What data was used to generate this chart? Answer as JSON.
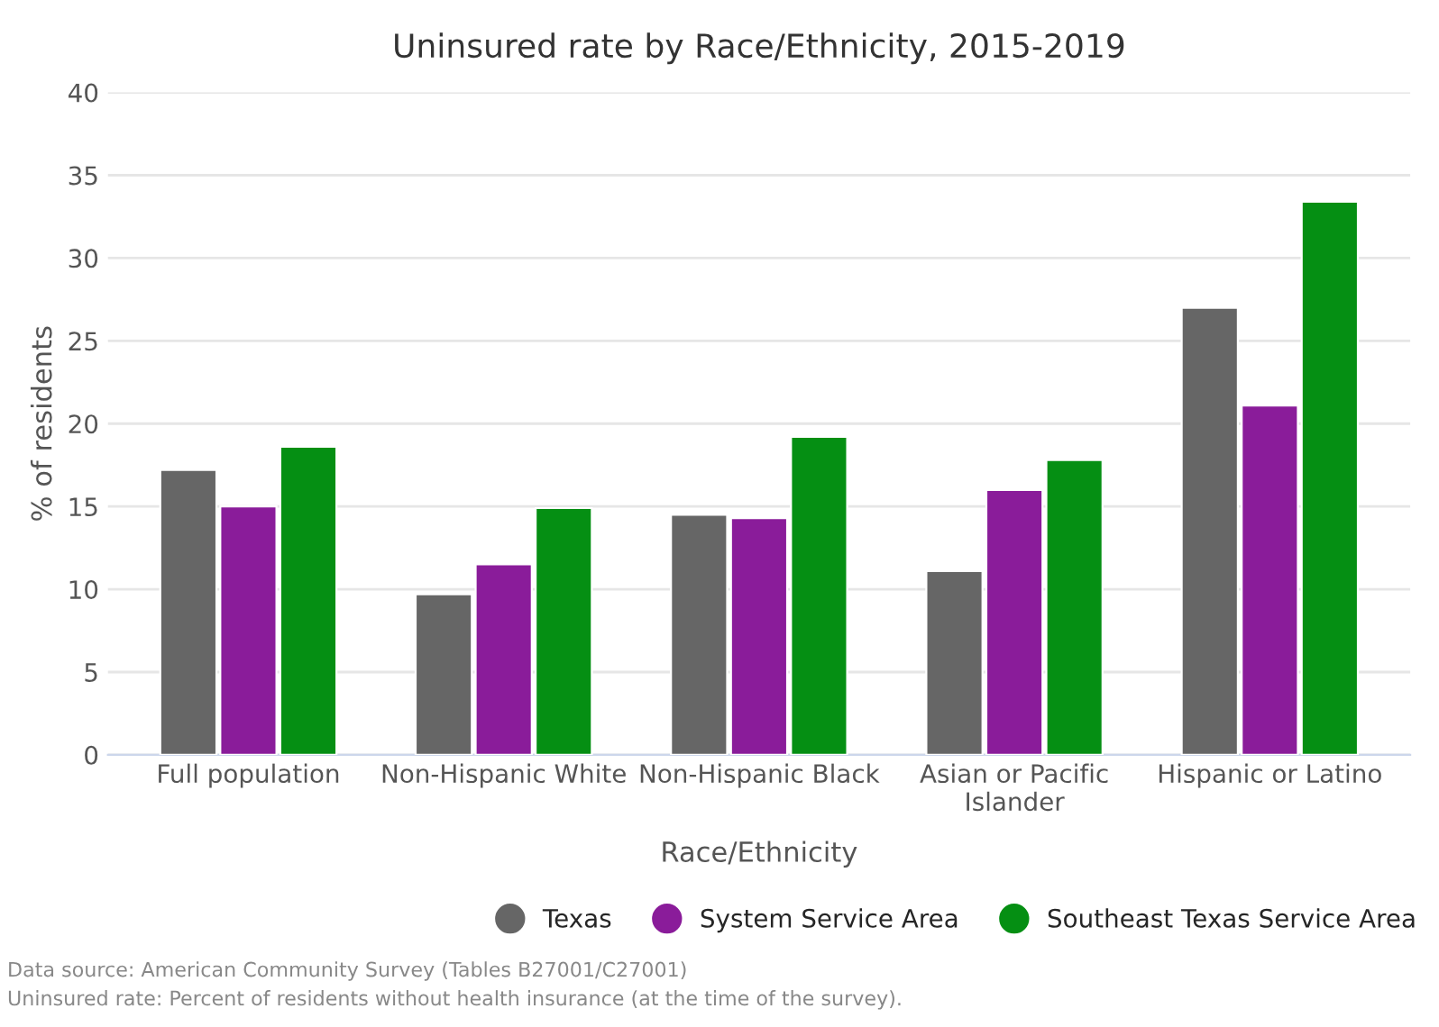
{
  "chart_data": {
    "type": "bar",
    "title": "Uninsured rate by Race/Ethnicity, 2015-2019",
    "xlabel": "Race/Ethnicity",
    "ylabel": "% of residents",
    "categories": [
      "Full population",
      "Non-Hispanic White",
      "Non-Hispanic Black",
      "Asian or Pacific\nIslander",
      "Hispanic or Latino"
    ],
    "series": [
      {
        "name": "Texas",
        "color": "#666666",
        "values": [
          17.2,
          9.7,
          14.5,
          11.1,
          27.0
        ]
      },
      {
        "name": "System Service Area",
        "color": "#8a1c9a",
        "values": [
          15.0,
          11.5,
          14.3,
          16.0,
          21.1
        ]
      },
      {
        "name": "Southeast Texas Service Area",
        "color": "#058f13",
        "values": [
          18.6,
          14.9,
          19.2,
          17.8,
          33.4
        ]
      }
    ],
    "ylim": [
      0,
      40
    ],
    "yticks": [
      0,
      5,
      10,
      15,
      20,
      25,
      30,
      35,
      40
    ],
    "grid": "y",
    "legend": "bottom right",
    "annotations": [
      "Data source: American Community Survey (Tables B27001/C27001)",
      "Uninsured rate: Percent of residents without health insurance (at the time of the survey)."
    ]
  }
}
